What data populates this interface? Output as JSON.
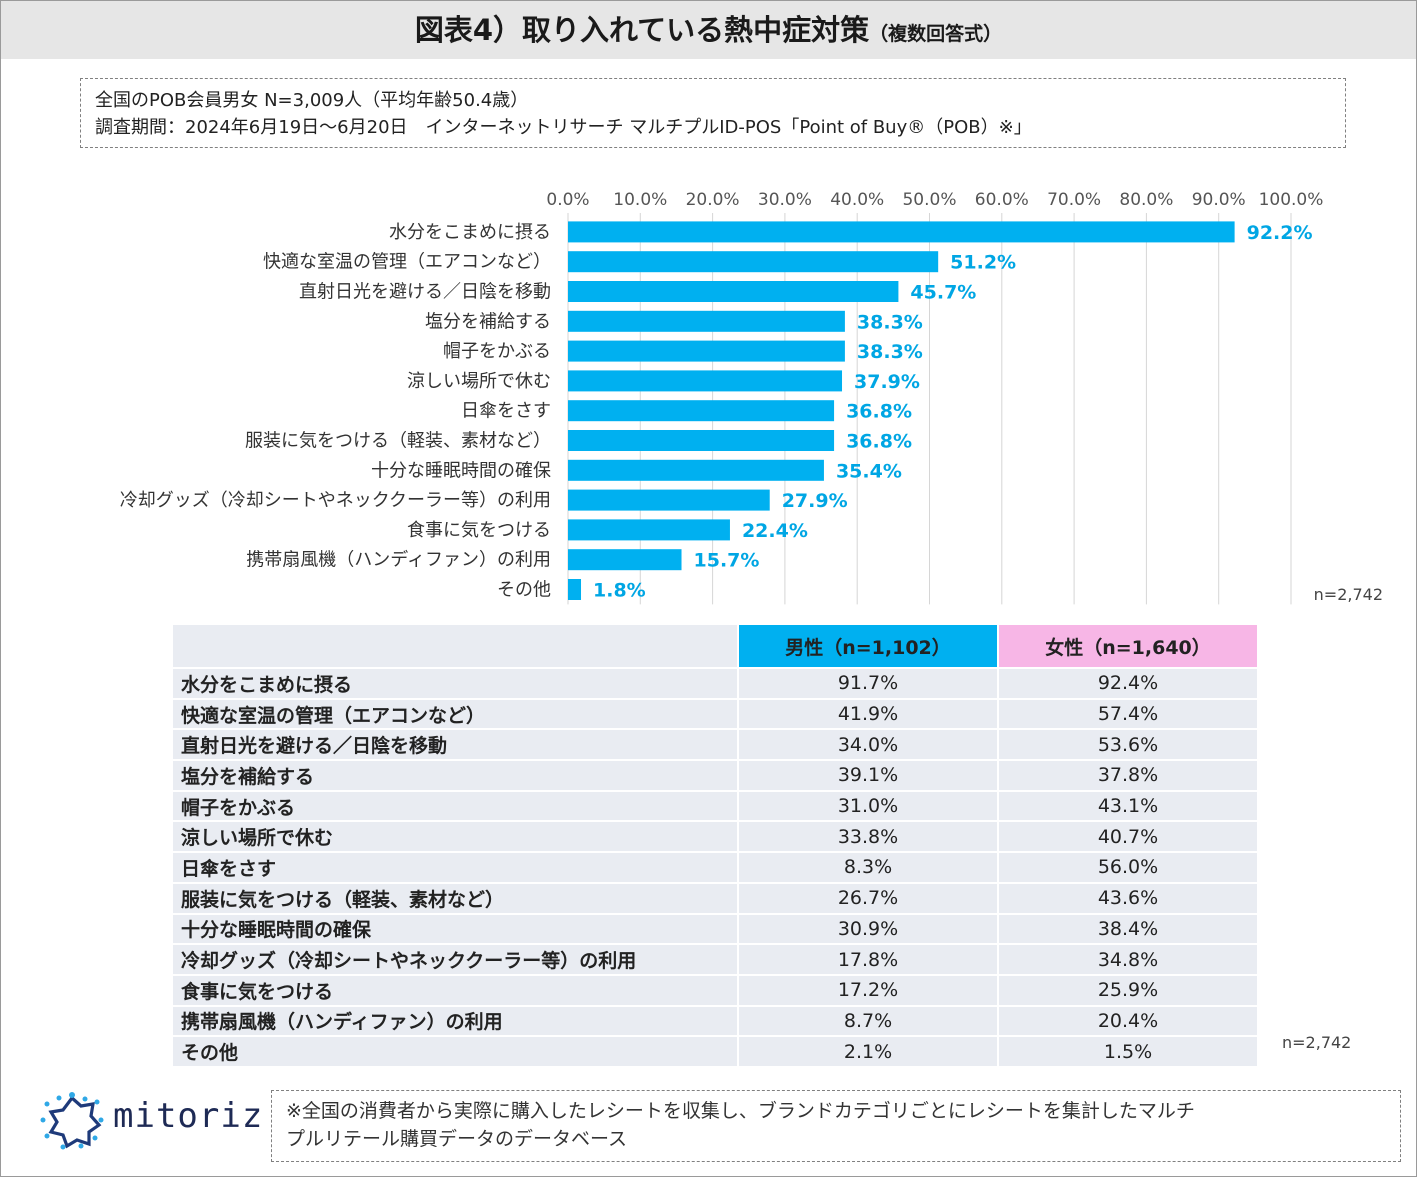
{
  "title": {
    "main": "図表4）取り入れている熱中症対策",
    "sub": "（複数回答式）"
  },
  "survey": {
    "line1": "全国のPOB会員男女 N=3,009人（平均年齢50.4歳）",
    "line2": "調査期間：2024年6月19日～6月20日　インターネットリサーチ マルチプルID-POS「Point of Buy®（POB）※」"
  },
  "colors": {
    "bar": "#00b0f0",
    "value_label": "#00a6e4",
    "male_header": "#00b0f0",
    "female_header": "#f7b6e6",
    "table_bg": "#e9ecf2"
  },
  "chart_data": {
    "type": "bar",
    "orientation": "horizontal",
    "categories": [
      "水分をこまめに摂る",
      "快適な室温の管理（エアコンなど）",
      "直射日光を避ける／日陰を移動",
      "塩分を補給する",
      "帽子をかぶる",
      "涼しい場所で休む",
      "日傘をさす",
      "服装に気をつける（軽装、素材など）",
      "十分な睡眠時間の確保",
      "冷却グッズ（冷却シートやネッククーラー等）の利用",
      "食事に気をつける",
      "携帯扇風機（ハンディファン）の利用",
      "その他"
    ],
    "values": [
      92.2,
      51.2,
      45.7,
      38.3,
      38.3,
      37.9,
      36.8,
      36.8,
      35.4,
      27.9,
      22.4,
      15.7,
      1.8
    ],
    "value_labels": [
      "92.2%",
      "51.2%",
      "45.7%",
      "38.3%",
      "38.3%",
      "37.9%",
      "36.8%",
      "36.8%",
      "35.4%",
      "27.9%",
      "22.4%",
      "15.7%",
      "1.8%"
    ],
    "xlim": [
      0,
      100
    ],
    "ticks": [
      "0.0%",
      "10.0%",
      "20.0%",
      "30.0%",
      "40.0%",
      "50.0%",
      "60.0%",
      "70.0%",
      "80.0%",
      "90.0%",
      "100.0%"
    ],
    "grid": true,
    "n_note": "n=2,742"
  },
  "table": {
    "header_male": "男性（n=1,102）",
    "header_female": "女性（n=1,640）",
    "rows": [
      {
        "label": "水分をこまめに摂る",
        "male": "91.7%",
        "female": "92.4%"
      },
      {
        "label": "快適な室温の管理（エアコンなど）",
        "male": "41.9%",
        "female": "57.4%"
      },
      {
        "label": "直射日光を避ける／日陰を移動",
        "male": "34.0%",
        "female": "53.6%"
      },
      {
        "label": "塩分を補給する",
        "male": "39.1%",
        "female": "37.8%"
      },
      {
        "label": "帽子をかぶる",
        "male": "31.0%",
        "female": "43.1%"
      },
      {
        "label": "涼しい場所で休む",
        "male": "33.8%",
        "female": "40.7%"
      },
      {
        "label": "日傘をさす",
        "male": "8.3%",
        "female": "56.0%"
      },
      {
        "label": "服装に気をつける（軽装、素材など）",
        "male": "26.7%",
        "female": "43.6%"
      },
      {
        "label": "十分な睡眠時間の確保",
        "male": "30.9%",
        "female": "38.4%"
      },
      {
        "label": "冷却グッズ（冷却シートやネッククーラー等）の利用",
        "male": "17.8%",
        "female": "34.8%"
      },
      {
        "label": "食事に気をつける",
        "male": "17.2%",
        "female": "25.9%"
      },
      {
        "label": "携帯扇風機（ハンディファン）の利用",
        "male": "8.7%",
        "female": "20.4%"
      },
      {
        "label": "その他",
        "male": "2.1%",
        "female": "1.5%"
      }
    ],
    "n_note": "n=2,742"
  },
  "logo": {
    "text": "mitoriz",
    "icon": "mitoriz-logo-icon"
  },
  "footnote": {
    "line1": "※全国の消費者から実際に購入したレシートを収集し、ブランドカテゴリごとにレシートを集計したマルチ",
    "line2": "プルリテール購買データのデータベース"
  }
}
